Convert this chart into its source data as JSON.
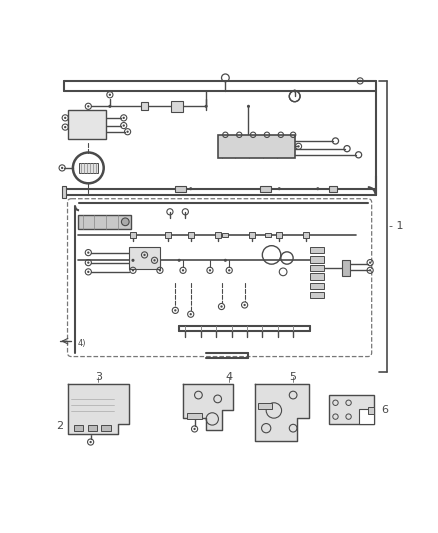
{
  "bg_color": "#ffffff",
  "line_color": "#4a4a4a",
  "fig_width": 4.39,
  "fig_height": 5.33,
  "dpi": 100,
  "label_1": "- 1",
  "label_2": "2",
  "label_3": "3",
  "label_4": "4",
  "label_5": "5",
  "label_6": "6"
}
